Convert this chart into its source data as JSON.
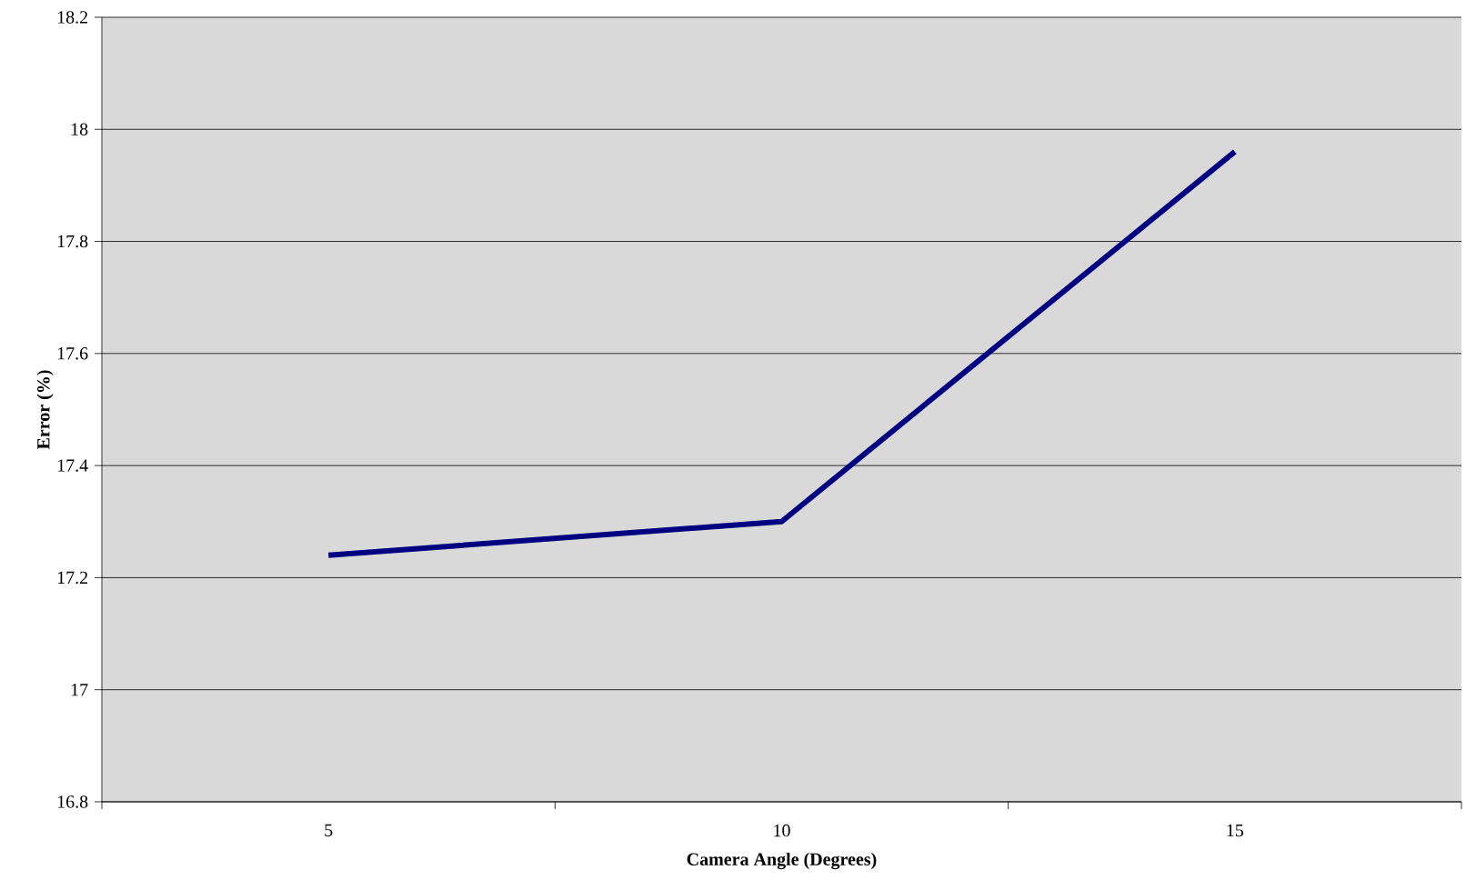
{
  "chart_data": {
    "type": "line",
    "categories": [
      "5",
      "10",
      "15"
    ],
    "series": [
      {
        "color": "#000080",
        "values": [
          17.24,
          17.3,
          17.96
        ]
      }
    ],
    "xlabel": "Camera Angle (Degrees)",
    "ylabel": "Error (%)",
    "ylim": [
      16.8,
      18.2
    ],
    "yticks": [
      16.8,
      17,
      17.2,
      17.4,
      17.6,
      17.8,
      18,
      18.2
    ],
    "grid": "y",
    "marker": "none",
    "line_style": "solid"
  }
}
